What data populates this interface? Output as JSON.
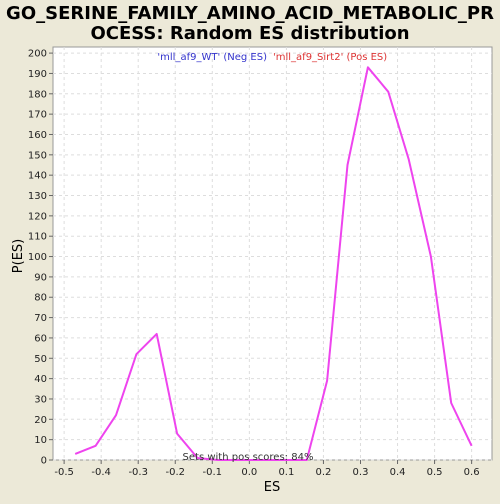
{
  "chart_data": {
    "type": "line",
    "title_lines": [
      "GO_SERINE_FAMILY_AMINO_ACID_METABOLIC_PR",
      "OCESS: Random ES distribution"
    ],
    "xlabel": "ES",
    "ylabel": "P(ES)",
    "xlim": [
      -0.53,
      0.655
    ],
    "ylim": [
      0,
      203
    ],
    "xticks": [
      -0.5,
      -0.4,
      -0.3,
      -0.2,
      -0.1,
      0.0,
      0.1,
      0.2,
      0.3,
      0.4,
      0.5,
      0.6
    ],
    "xtick_labels": [
      "-0.5",
      "-0.4",
      "-0.3",
      "-0.2",
      "-0.1",
      "0.0",
      "0.1",
      "0.2",
      "0.3",
      "0.4",
      "0.5",
      "0.6"
    ],
    "yticks": [
      0,
      10,
      20,
      30,
      40,
      50,
      60,
      70,
      80,
      90,
      100,
      110,
      120,
      130,
      140,
      150,
      160,
      170,
      180,
      190,
      200
    ],
    "grid": true,
    "legend": [
      {
        "label": "'mll_af9_WT' (Neg ES)",
        "color": "#3333CC"
      },
      {
        "label": "'mll_af9_Sirt2' (Pos ES)",
        "color": "#DD3333"
      }
    ],
    "annotation": "Sets with pos scores: 84%",
    "series": [
      {
        "color": "#EE44EE",
        "x": [
          -0.47,
          -0.415,
          -0.36,
          -0.305,
          -0.25,
          -0.195,
          -0.14,
          -0.085,
          -0.03,
          0.025,
          0.08,
          0.135,
          0.155,
          0.21,
          0.265,
          0.32,
          0.375,
          0.43,
          0.49,
          0.545,
          0.6
        ],
        "y": [
          3,
          7,
          22,
          52,
          62,
          13,
          1,
          0,
          0,
          0,
          0,
          0,
          0,
          39,
          145,
          193,
          181,
          148,
          100,
          28,
          7
        ]
      }
    ]
  }
}
